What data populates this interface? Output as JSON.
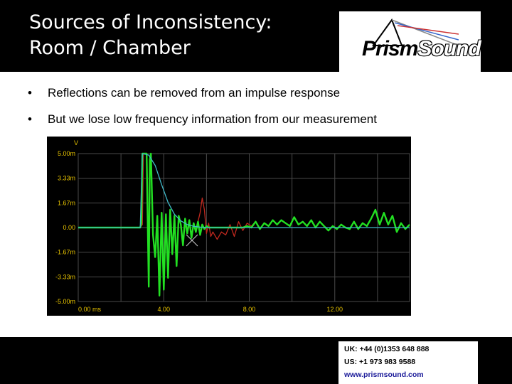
{
  "slide": {
    "title_lines": [
      "Sources of Inconsistency:",
      "Room / Chamber"
    ],
    "logo_text": "PrismSound",
    "bullets": [
      "Reflections can be removed from an impulse response",
      "But we lose low frequency information from our measurement"
    ],
    "contact": {
      "uk": "UK: +44 (0)1353 648 888",
      "us": "US: +1 973 983 9588",
      "web": "www.prismsound.com"
    }
  },
  "chart_data": {
    "type": "line",
    "title": "",
    "ylabel": "V",
    "xlabel": "",
    "x_ticks": [
      "0.00 ms",
      "4.00",
      "8.00",
      "12.00"
    ],
    "y_ticks": [
      "5.00m",
      "3.33m",
      "1.67m",
      "0.00",
      "-1.67m",
      "-3.33m",
      "-5.00m"
    ],
    "xlim": [
      0,
      15.5
    ],
    "ylim": [
      -5.0,
      5.0
    ],
    "grid": true,
    "colors": {
      "green": "#22e022",
      "red": "#c0281e",
      "cyan": "#40b8c8",
      "grid": "#4a4a4a",
      "tick_text": "#e6c200"
    },
    "series": [
      {
        "color": "red",
        "x": [
          2.9,
          3.0,
          3.05,
          3.1,
          3.2,
          3.3,
          3.35,
          3.4,
          3.5,
          3.6,
          3.7,
          3.8,
          3.9,
          4.0,
          4.1,
          4.2,
          4.3,
          4.4,
          4.5,
          4.6,
          4.7,
          4.8,
          4.9,
          5.0,
          5.1,
          5.2,
          5.3,
          5.4,
          5.5,
          5.6,
          5.7,
          5.8,
          5.9,
          6.0,
          6.1,
          6.2,
          6.3,
          6.5,
          6.7,
          6.9,
          7.1,
          7.3,
          7.5,
          7.7,
          7.9,
          8.1,
          8.3,
          8.5,
          8.7,
          8.9,
          9.1,
          9.3,
          9.5,
          9.7,
          9.9,
          10.1,
          10.3,
          10.5,
          10.7,
          10.9,
          11.1,
          11.3,
          11.5,
          11.7,
          11.9,
          12.1,
          12.3,
          12.5,
          12.7,
          12.9,
          13.1,
          13.3,
          13.5,
          13.7,
          13.9,
          14.1,
          14.3,
          14.5,
          14.7,
          14.9,
          15.1,
          15.3,
          15.5
        ],
        "values": [
          0.0,
          0.2,
          5.0,
          5.0,
          5.0,
          -4.0,
          4.6,
          5.0,
          -0.5,
          -2.0,
          0.8,
          -4.6,
          1.0,
          -4.2,
          0.9,
          -3.4,
          1.2,
          -1.8,
          0.8,
          -2.6,
          0.8,
          0.2,
          -1.2,
          0.6,
          -0.4,
          0.5,
          -0.7,
          0.3,
          -0.3,
          0.4,
          1.0,
          2.0,
          1.2,
          -0.4,
          0.3,
          -0.6,
          -0.3,
          -0.8,
          -0.3,
          -0.5,
          0.2,
          -0.6,
          0.4,
          -0.2,
          0.3,
          0.1,
          0.4,
          -0.1,
          0.3,
          0.1,
          0.5,
          0.2,
          0.5,
          0.3,
          0.1,
          0.7,
          0.2,
          0.4,
          0.1,
          0.5,
          0.0,
          0.4,
          0.1,
          -0.2,
          0.1,
          -0.1,
          0.2,
          0.0,
          -0.1,
          0.4,
          -0.1,
          0.3,
          0.1,
          0.6,
          1.2,
          0.2,
          1.0,
          0.2,
          0.8,
          -0.3,
          0.3,
          -0.1,
          0.2
        ]
      },
      {
        "color": "green",
        "x": [
          0.0,
          2.9,
          2.95,
          3.0,
          3.05,
          3.1,
          3.2,
          3.3,
          3.35,
          3.4,
          3.5,
          3.6,
          3.7,
          3.8,
          3.9,
          4.0,
          4.1,
          4.2,
          4.3,
          4.4,
          4.5,
          4.6,
          4.7,
          4.8,
          4.9,
          5.0,
          5.1,
          5.2,
          5.3,
          5.4,
          5.5,
          5.6,
          5.7,
          5.8,
          5.9,
          6.0,
          6.1,
          6.2,
          6.3,
          6.5,
          6.7,
          6.9,
          7.1,
          7.3,
          7.5,
          7.7,
          7.9,
          8.1,
          8.3,
          8.5,
          8.7,
          8.9,
          9.1,
          9.3,
          9.5,
          9.7,
          9.9,
          10.1,
          10.3,
          10.5,
          10.7,
          10.9,
          11.1,
          11.3,
          11.5,
          11.7,
          11.9,
          12.1,
          12.3,
          12.5,
          12.7,
          12.9,
          13.1,
          13.3,
          13.5,
          13.7,
          13.9,
          14.1,
          14.3,
          14.5,
          14.7,
          14.9,
          15.1,
          15.3,
          15.5
        ],
        "values": [
          0.0,
          0.0,
          0.3,
          5.0,
          5.0,
          5.0,
          5.0,
          -4.0,
          4.6,
          5.0,
          -0.5,
          -2.0,
          0.8,
          -4.6,
          1.0,
          -4.2,
          0.9,
          -3.4,
          1.2,
          -1.8,
          0.8,
          -2.6,
          0.8,
          0.2,
          -1.2,
          0.6,
          -0.4,
          0.5,
          -0.7,
          0.3,
          -0.3,
          0.4,
          -0.5,
          0.2,
          -0.1,
          0.1,
          0.0,
          0.0,
          0.0,
          0.0,
          0.0,
          0.0,
          0.0,
          0.0,
          0.0,
          0.0,
          0.1,
          0.0,
          0.4,
          -0.1,
          0.3,
          0.1,
          0.5,
          0.2,
          0.5,
          0.3,
          0.1,
          0.7,
          0.2,
          0.4,
          0.1,
          0.5,
          0.0,
          0.4,
          0.1,
          -0.2,
          0.1,
          -0.1,
          0.2,
          0.0,
          -0.1,
          0.4,
          -0.1,
          0.3,
          0.1,
          0.6,
          1.2,
          0.2,
          1.0,
          0.2,
          0.8,
          -0.3,
          0.3,
          -0.1,
          0.2
        ]
      },
      {
        "color": "cyan",
        "x": [
          0.0,
          2.9,
          3.0,
          3.3,
          3.6,
          3.9,
          4.2,
          4.5,
          4.8,
          5.1,
          5.4,
          5.7,
          6.0,
          6.5,
          7.0,
          8.0,
          10.0,
          12.0,
          14.0,
          15.5
        ],
        "values": [
          0.0,
          0.0,
          5.0,
          4.9,
          4.2,
          2.9,
          1.7,
          0.9,
          0.45,
          0.2,
          0.08,
          0.03,
          0.01,
          0.0,
          0.0,
          0.0,
          0.0,
          0.0,
          0.0,
          0.0
        ]
      }
    ]
  }
}
